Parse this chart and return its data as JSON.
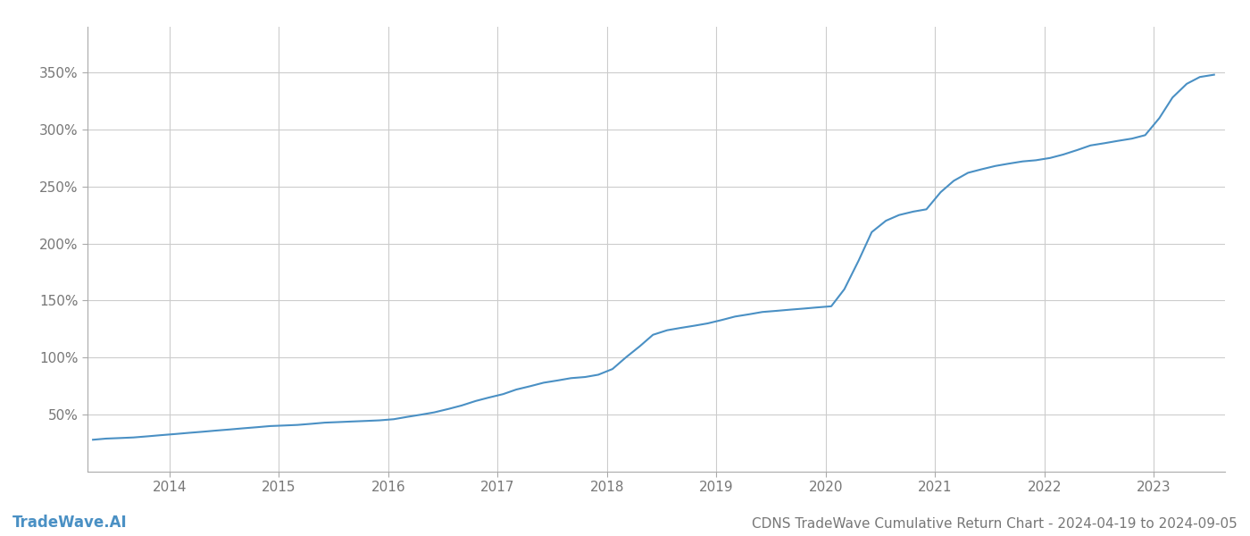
{
  "title": "CDNS TradeWave Cumulative Return Chart - 2024-04-19 to 2024-09-05",
  "watermark": "TradeWave.AI",
  "line_color": "#4a90c4",
  "background_color": "#ffffff",
  "grid_color": "#cccccc",
  "x_years": [
    2014,
    2015,
    2016,
    2017,
    2018,
    2019,
    2020,
    2021,
    2022,
    2023
  ],
  "x_data": [
    2013.3,
    2013.42,
    2013.55,
    2013.67,
    2013.8,
    2013.92,
    2014.05,
    2014.17,
    2014.3,
    2014.42,
    2014.55,
    2014.67,
    2014.8,
    2014.92,
    2015.05,
    2015.17,
    2015.3,
    2015.42,
    2015.55,
    2015.67,
    2015.8,
    2015.92,
    2016.05,
    2016.17,
    2016.3,
    2016.42,
    2016.55,
    2016.67,
    2016.8,
    2016.92,
    2017.05,
    2017.17,
    2017.3,
    2017.42,
    2017.55,
    2017.67,
    2017.8,
    2017.92,
    2018.05,
    2018.17,
    2018.3,
    2018.42,
    2018.55,
    2018.67,
    2018.8,
    2018.92,
    2019.05,
    2019.17,
    2019.3,
    2019.42,
    2019.55,
    2019.67,
    2019.8,
    2019.92,
    2020.05,
    2020.17,
    2020.3,
    2020.42,
    2020.55,
    2020.67,
    2020.8,
    2020.92,
    2021.05,
    2021.17,
    2021.3,
    2021.42,
    2021.55,
    2021.67,
    2021.8,
    2021.92,
    2022.05,
    2022.17,
    2022.3,
    2022.42,
    2022.55,
    2022.67,
    2022.8,
    2022.92,
    2023.05,
    2023.17,
    2023.3,
    2023.42,
    2023.55
  ],
  "y_data": [
    28,
    29,
    29.5,
    30,
    31,
    32,
    33,
    34,
    35,
    36,
    37,
    38,
    39,
    40,
    40.5,
    41,
    42,
    43,
    43.5,
    44,
    44.5,
    45,
    46,
    48,
    50,
    52,
    55,
    58,
    62,
    65,
    68,
    72,
    75,
    78,
    80,
    82,
    83,
    85,
    90,
    100,
    110,
    120,
    124,
    126,
    128,
    130,
    133,
    136,
    138,
    140,
    141,
    142,
    143,
    144,
    145,
    160,
    185,
    210,
    220,
    225,
    228,
    230,
    245,
    255,
    262,
    265,
    268,
    270,
    272,
    273,
    275,
    278,
    282,
    286,
    288,
    290,
    292,
    295,
    310,
    328,
    340,
    346,
    348
  ],
  "ylim": [
    0,
    390
  ],
  "xlim": [
    2013.25,
    2023.65
  ],
  "yticks": [
    50,
    100,
    150,
    200,
    250,
    300,
    350
  ],
  "ylabel_fontsize": 11,
  "xlabel_fontsize": 11,
  "title_fontsize": 11,
  "watermark_fontsize": 12,
  "line_width": 1.5,
  "text_color": "#777777",
  "title_color": "#777777",
  "spine_color": "#aaaaaa"
}
